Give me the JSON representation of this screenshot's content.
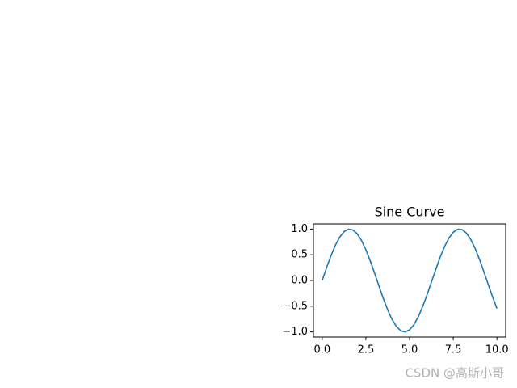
{
  "chart_data": {
    "type": "line",
    "title": "Sine Curve",
    "x": [
      0,
      0.25,
      0.5,
      0.75,
      1,
      1.25,
      1.5,
      1.75,
      2,
      2.25,
      2.5,
      2.75,
      3,
      3.25,
      3.5,
      3.75,
      4,
      4.25,
      4.5,
      4.75,
      5,
      5.25,
      5.5,
      5.75,
      6,
      6.25,
      6.5,
      6.75,
      7,
      7.25,
      7.5,
      7.75,
      8,
      8.25,
      8.5,
      8.75,
      9,
      9.25,
      9.5,
      9.75,
      10
    ],
    "series": [
      {
        "color": "#1f77b4",
        "values": [
          0,
          0.247,
          0.479,
          0.682,
          0.841,
          0.949,
          0.997,
          0.984,
          0.909,
          0.778,
          0.598,
          0.382,
          0.141,
          -0.108,
          -0.351,
          -0.572,
          -0.757,
          -0.895,
          -0.978,
          -0.999,
          -0.959,
          -0.859,
          -0.706,
          -0.508,
          -0.279,
          -0.033,
          0.215,
          0.451,
          0.657,
          0.823,
          0.938,
          0.995,
          0.989,
          0.921,
          0.798,
          0.625,
          0.412,
          0.173,
          -0.075,
          -0.319,
          -0.544
        ]
      }
    ],
    "xlim": [
      -0.5,
      10.5
    ],
    "ylim": [
      -1.1,
      1.1
    ],
    "xticks": [
      {
        "value": 0,
        "label": "0.0"
      },
      {
        "value": 2.5,
        "label": "2.5"
      },
      {
        "value": 5,
        "label": "5.0"
      },
      {
        "value": 7.5,
        "label": "7.5"
      },
      {
        "value": 10,
        "label": "10.0"
      }
    ],
    "yticks": [
      {
        "value": -1,
        "label": "−1.0"
      },
      {
        "value": -0.5,
        "label": "−0.5"
      },
      {
        "value": 0,
        "label": "0.0"
      },
      {
        "value": 0.5,
        "label": "0.5"
      },
      {
        "value": 1,
        "label": "1.0"
      }
    ],
    "watermark": "CSDN @高斯小哥"
  }
}
